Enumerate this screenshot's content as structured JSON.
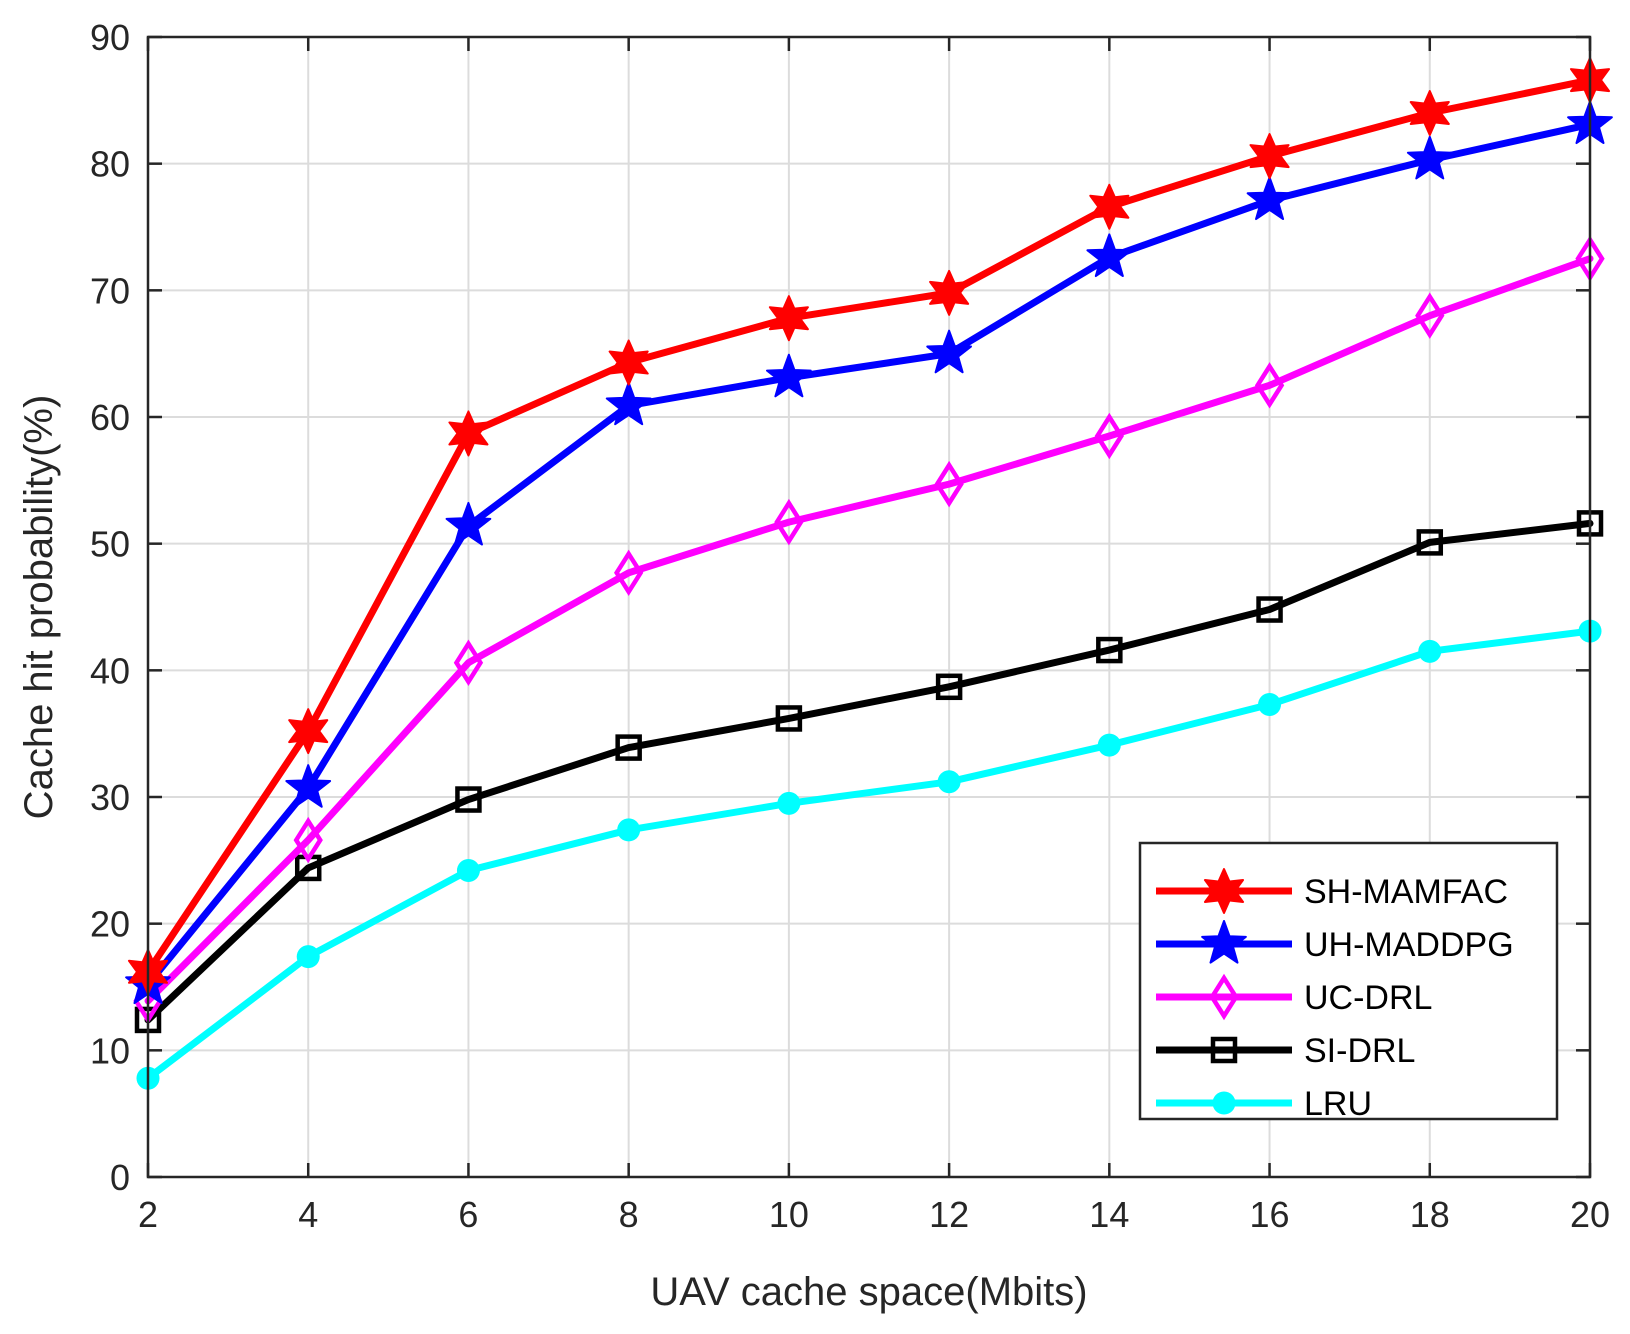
{
  "chart_data": {
    "type": "line",
    "title": "",
    "xlabel": "UAV cache space(Mbits)",
    "ylabel": "Cache hit probability(%)",
    "x": [
      2,
      4,
      6,
      8,
      10,
      12,
      14,
      16,
      18,
      20
    ],
    "xlim": [
      2,
      20
    ],
    "ylim": [
      0,
      90
    ],
    "xticks": [
      2,
      4,
      6,
      8,
      10,
      12,
      14,
      16,
      18,
      20
    ],
    "yticks": [
      0,
      10,
      20,
      30,
      40,
      50,
      60,
      70,
      80,
      90
    ],
    "grid": true,
    "legend_position": "bottom-right",
    "series": [
      {
        "name": "SH-MAMFAC",
        "color": "#ff0000",
        "marker": "hexagram",
        "values": [
          16.2,
          35.2,
          58.7,
          64.3,
          67.8,
          69.8,
          76.6,
          80.6,
          84.0,
          86.6
        ]
      },
      {
        "name": "UH-MADDPG",
        "color": "#0000ff",
        "marker": "pentagram",
        "values": [
          15.2,
          30.7,
          51.4,
          60.9,
          63.1,
          65.0,
          72.6,
          77.1,
          80.3,
          83.1
        ]
      },
      {
        "name": "UC-DRL",
        "color": "#ff00ff",
        "marker": "diamond",
        "values": [
          13.9,
          26.6,
          40.6,
          47.7,
          51.7,
          54.7,
          58.5,
          62.5,
          68.0,
          72.5
        ]
      },
      {
        "name": "SI-DRL",
        "color": "#000000",
        "marker": "square",
        "values": [
          12.4,
          24.4,
          29.8,
          33.9,
          36.2,
          38.7,
          41.6,
          44.8,
          50.1,
          51.6
        ]
      },
      {
        "name": "LRU",
        "color": "#00ffff",
        "marker": "circle",
        "values": [
          7.8,
          17.4,
          24.2,
          27.4,
          29.5,
          31.2,
          34.1,
          37.3,
          41.5,
          43.1
        ]
      }
    ]
  }
}
